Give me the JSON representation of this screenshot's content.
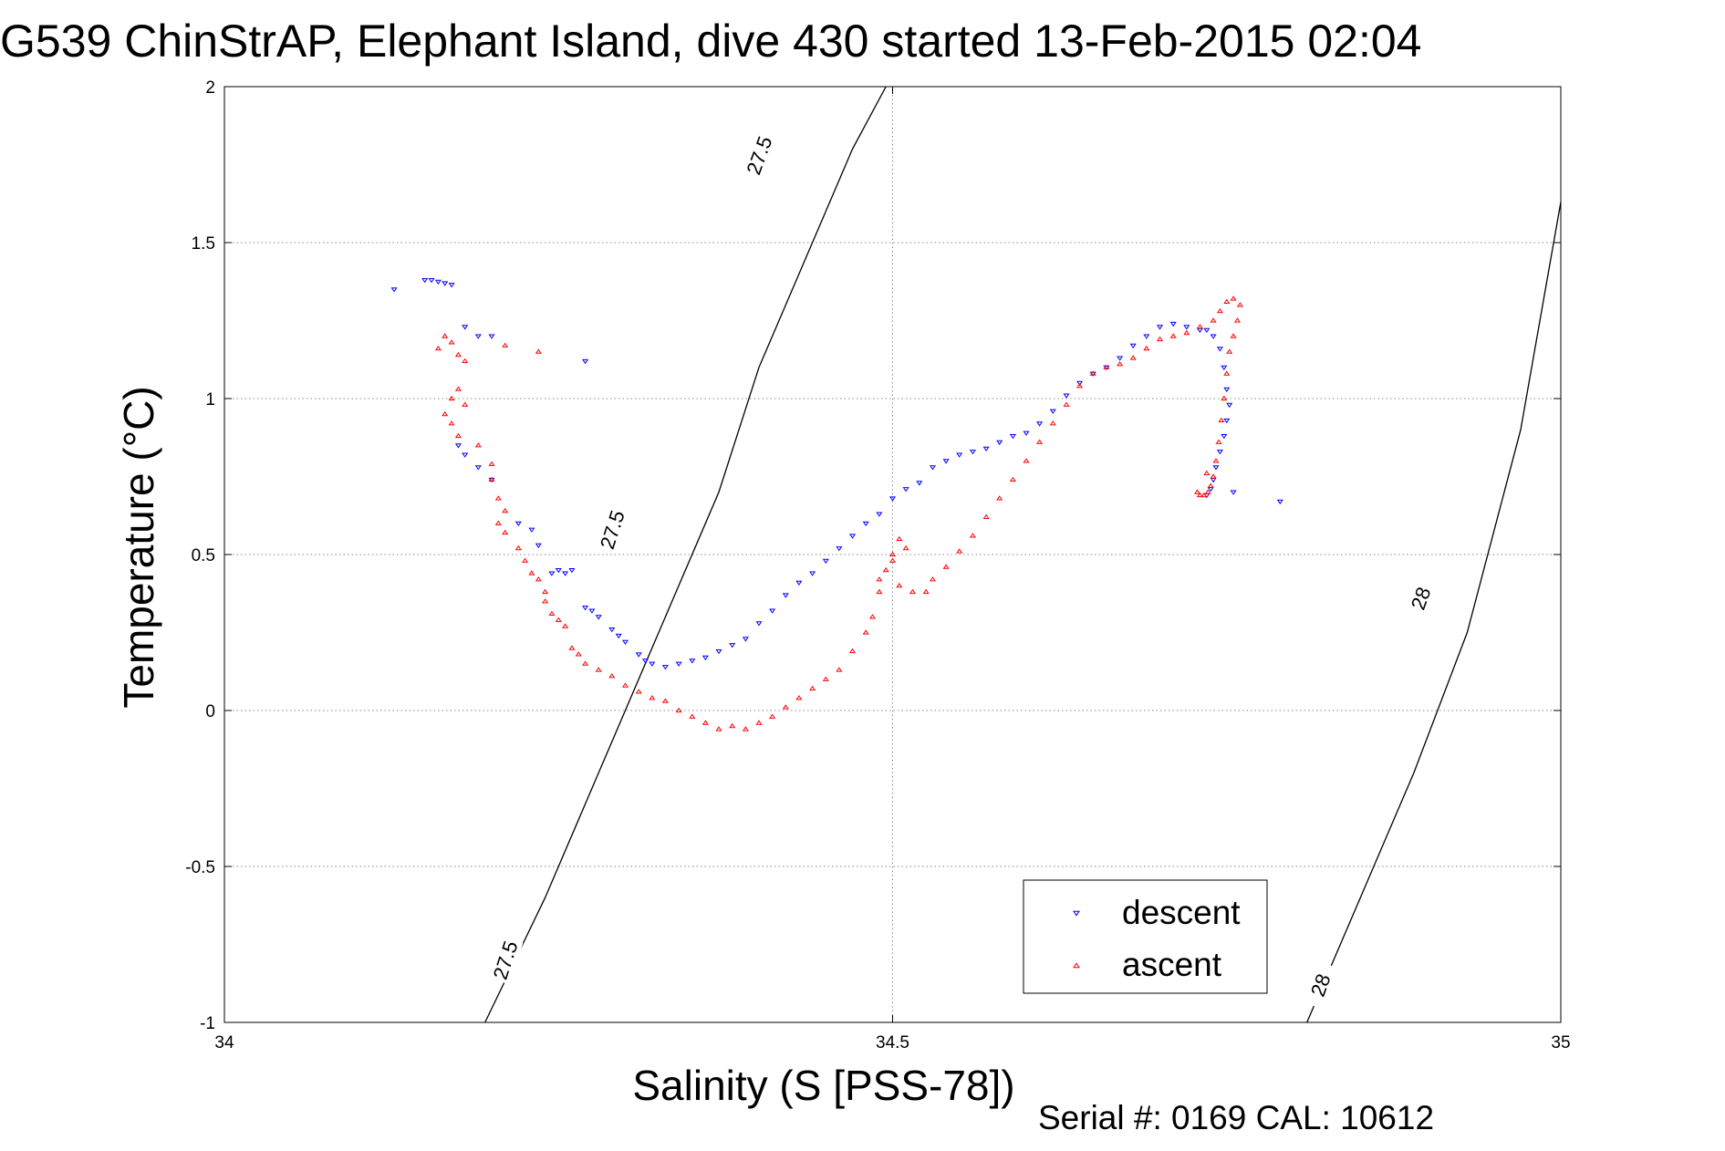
{
  "chart_data": {
    "type": "scatter",
    "title": "G539 ChinStrAP, Elephant Island, dive 430 started 13-Feb-2015 02:04",
    "xlabel": "Salinity (S [PSS-78])",
    "ylabel": "Temperature (°C)",
    "footer": "Serial #: 0169 CAL: 10612",
    "xlim": [
      34,
      35
    ],
    "ylim": [
      -1,
      2
    ],
    "xticks": [
      34,
      34.5,
      35
    ],
    "xtick_labels": [
      "34",
      "34.5",
      "35"
    ],
    "yticks": [
      -1,
      -0.5,
      0,
      0.5,
      1,
      1.5,
      2
    ],
    "ytick_labels": [
      "-1",
      "-0.5",
      "0",
      "0.5",
      "1",
      "1.5",
      "2"
    ],
    "grid": true,
    "legend_position": "bottom-right",
    "colors": {
      "descent": "#0000ff",
      "ascent": "#ff0000",
      "contour": "#000000"
    },
    "contours": [
      {
        "level": "27.5",
        "points": [
          [
            34.195,
            -1.0
          ],
          [
            34.24,
            -0.6
          ],
          [
            34.28,
            -0.2
          ],
          [
            34.33,
            0.3
          ],
          [
            34.37,
            0.7
          ],
          [
            34.4,
            1.1
          ],
          [
            34.44,
            1.5
          ],
          [
            34.47,
            1.8
          ],
          [
            34.495,
            2.0
          ]
        ],
        "labels": [
          [
            34.21,
            -0.8,
            -72
          ],
          [
            34.29,
            0.58,
            -72
          ],
          [
            34.4,
            1.78,
            -70
          ]
        ]
      },
      {
        "level": "28",
        "points": [
          [
            34.81,
            -1.0
          ],
          [
            34.85,
            -0.6
          ],
          [
            34.89,
            -0.2
          ],
          [
            34.93,
            0.25
          ],
          [
            34.97,
            0.9
          ],
          [
            35.0,
            1.63
          ]
        ],
        "labels": [
          [
            34.82,
            -0.88,
            -70
          ],
          [
            34.895,
            0.36,
            -70
          ]
        ]
      }
    ],
    "series": [
      {
        "name": "descent",
        "marker": "down-triangle",
        "points": [
          [
            34.127,
            1.35
          ],
          [
            34.15,
            1.38
          ],
          [
            34.155,
            1.38
          ],
          [
            34.16,
            1.375
          ],
          [
            34.165,
            1.37
          ],
          [
            34.17,
            1.365
          ],
          [
            34.18,
            1.23
          ],
          [
            34.19,
            1.2
          ],
          [
            34.2,
            1.2
          ],
          [
            34.27,
            1.12
          ],
          [
            34.175,
            0.85
          ],
          [
            34.18,
            0.82
          ],
          [
            34.19,
            0.78
          ],
          [
            34.2,
            0.74
          ],
          [
            34.22,
            0.6
          ],
          [
            34.23,
            0.58
          ],
          [
            34.235,
            0.53
          ],
          [
            34.245,
            0.44
          ],
          [
            34.25,
            0.45
          ],
          [
            34.255,
            0.44
          ],
          [
            34.26,
            0.45
          ],
          [
            34.27,
            0.33
          ],
          [
            34.275,
            0.32
          ],
          [
            34.28,
            0.3
          ],
          [
            34.29,
            0.26
          ],
          [
            34.295,
            0.24
          ],
          [
            34.3,
            0.22
          ],
          [
            34.31,
            0.18
          ],
          [
            34.315,
            0.16
          ],
          [
            34.32,
            0.15
          ],
          [
            34.33,
            0.14
          ],
          [
            34.34,
            0.15
          ],
          [
            34.35,
            0.16
          ],
          [
            34.36,
            0.17
          ],
          [
            34.37,
            0.19
          ],
          [
            34.38,
            0.21
          ],
          [
            34.39,
            0.23
          ],
          [
            34.4,
            0.28
          ],
          [
            34.41,
            0.32
          ],
          [
            34.42,
            0.37
          ],
          [
            34.43,
            0.41
          ],
          [
            34.44,
            0.44
          ],
          [
            34.45,
            0.48
          ],
          [
            34.46,
            0.52
          ],
          [
            34.47,
            0.56
          ],
          [
            34.48,
            0.6
          ],
          [
            34.49,
            0.63
          ],
          [
            34.5,
            0.68
          ],
          [
            34.51,
            0.71
          ],
          [
            34.52,
            0.73
          ],
          [
            34.53,
            0.78
          ],
          [
            34.54,
            0.8
          ],
          [
            34.55,
            0.82
          ],
          [
            34.56,
            0.83
          ],
          [
            34.57,
            0.84
          ],
          [
            34.58,
            0.86
          ],
          [
            34.59,
            0.88
          ],
          [
            34.6,
            0.89
          ],
          [
            34.61,
            0.92
          ],
          [
            34.62,
            0.96
          ],
          [
            34.63,
            1.01
          ],
          [
            34.64,
            1.05
          ],
          [
            34.65,
            1.08
          ],
          [
            34.66,
            1.1
          ],
          [
            34.67,
            1.13
          ],
          [
            34.68,
            1.17
          ],
          [
            34.69,
            1.2
          ],
          [
            34.7,
            1.23
          ],
          [
            34.71,
            1.24
          ],
          [
            34.72,
            1.23
          ],
          [
            34.73,
            1.22
          ],
          [
            34.735,
            1.22
          ],
          [
            34.74,
            1.2
          ],
          [
            34.745,
            1.16
          ],
          [
            34.748,
            1.1
          ],
          [
            34.75,
            1.03
          ],
          [
            34.752,
            0.98
          ],
          [
            34.75,
            0.93
          ],
          [
            34.748,
            0.88
          ],
          [
            34.745,
            0.83
          ],
          [
            34.742,
            0.78
          ],
          [
            34.74,
            0.74
          ],
          [
            34.738,
            0.71
          ],
          [
            34.735,
            0.69
          ],
          [
            34.755,
            0.7
          ],
          [
            34.79,
            0.67
          ]
        ]
      },
      {
        "name": "ascent",
        "marker": "up-triangle",
        "points": [
          [
            34.16,
            1.16
          ],
          [
            34.165,
            1.2
          ],
          [
            34.17,
            1.18
          ],
          [
            34.175,
            1.14
          ],
          [
            34.18,
            1.12
          ],
          [
            34.21,
            1.17
          ],
          [
            34.235,
            1.15
          ],
          [
            34.17,
            1.0
          ],
          [
            34.175,
            1.03
          ],
          [
            34.18,
            0.98
          ],
          [
            34.165,
            0.95
          ],
          [
            34.17,
            0.92
          ],
          [
            34.175,
            0.88
          ],
          [
            34.19,
            0.85
          ],
          [
            34.2,
            0.79
          ],
          [
            34.2,
            0.74
          ],
          [
            34.205,
            0.68
          ],
          [
            34.21,
            0.64
          ],
          [
            34.205,
            0.6
          ],
          [
            34.21,
            0.57
          ],
          [
            34.22,
            0.52
          ],
          [
            34.225,
            0.48
          ],
          [
            34.23,
            0.44
          ],
          [
            34.235,
            0.42
          ],
          [
            34.24,
            0.38
          ],
          [
            34.24,
            0.35
          ],
          [
            34.245,
            0.31
          ],
          [
            34.25,
            0.29
          ],
          [
            34.255,
            0.27
          ],
          [
            34.26,
            0.2
          ],
          [
            34.265,
            0.18
          ],
          [
            34.27,
            0.15
          ],
          [
            34.28,
            0.13
          ],
          [
            34.29,
            0.11
          ],
          [
            34.3,
            0.08
          ],
          [
            34.31,
            0.06
          ],
          [
            34.32,
            0.04
          ],
          [
            34.33,
            0.03
          ],
          [
            34.34,
            0.0
          ],
          [
            34.35,
            -0.02
          ],
          [
            34.36,
            -0.04
          ],
          [
            34.37,
            -0.06
          ],
          [
            34.38,
            -0.05
          ],
          [
            34.39,
            -0.06
          ],
          [
            34.4,
            -0.04
          ],
          [
            34.41,
            -0.02
          ],
          [
            34.42,
            0.01
          ],
          [
            34.43,
            0.04
          ],
          [
            34.44,
            0.07
          ],
          [
            34.45,
            0.1
          ],
          [
            34.46,
            0.13
          ],
          [
            34.47,
            0.19
          ],
          [
            34.48,
            0.25
          ],
          [
            34.485,
            0.3
          ],
          [
            34.49,
            0.38
          ],
          [
            34.495,
            0.45
          ],
          [
            34.5,
            0.5
          ],
          [
            34.505,
            0.55
          ],
          [
            34.51,
            0.52
          ],
          [
            34.5,
            0.48
          ],
          [
            34.49,
            0.42
          ],
          [
            34.505,
            0.4
          ],
          [
            34.515,
            0.38
          ],
          [
            34.525,
            0.38
          ],
          [
            34.53,
            0.42
          ],
          [
            34.54,
            0.46
          ],
          [
            34.55,
            0.51
          ],
          [
            34.56,
            0.56
          ],
          [
            34.57,
            0.62
          ],
          [
            34.58,
            0.68
          ],
          [
            34.59,
            0.74
          ],
          [
            34.6,
            0.8
          ],
          [
            34.61,
            0.86
          ],
          [
            34.62,
            0.92
          ],
          [
            34.63,
            0.98
          ],
          [
            34.64,
            1.04
          ],
          [
            34.65,
            1.08
          ],
          [
            34.66,
            1.1
          ],
          [
            34.67,
            1.11
          ],
          [
            34.68,
            1.13
          ],
          [
            34.69,
            1.16
          ],
          [
            34.7,
            1.19
          ],
          [
            34.71,
            1.2
          ],
          [
            34.72,
            1.21
          ],
          [
            34.73,
            1.23
          ],
          [
            34.74,
            1.25
          ],
          [
            34.745,
            1.28
          ],
          [
            34.75,
            1.31
          ],
          [
            34.755,
            1.32
          ],
          [
            34.76,
            1.3
          ],
          [
            34.758,
            1.25
          ],
          [
            34.755,
            1.2
          ],
          [
            34.752,
            1.15
          ],
          [
            34.75,
            1.08
          ],
          [
            34.748,
            1.0
          ],
          [
            34.746,
            0.93
          ],
          [
            34.744,
            0.86
          ],
          [
            34.742,
            0.8
          ],
          [
            34.74,
            0.75
          ],
          [
            34.738,
            0.72
          ],
          [
            34.736,
            0.7
          ],
          [
            34.733,
            0.69
          ],
          [
            34.73,
            0.69
          ],
          [
            34.728,
            0.7
          ],
          [
            34.735,
            0.76
          ]
        ]
      }
    ]
  }
}
